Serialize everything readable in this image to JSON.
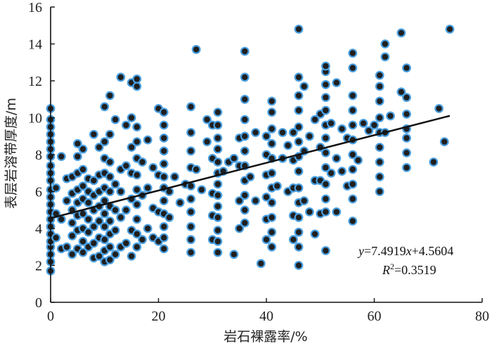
{
  "chart_data": {
    "type": "scatter",
    "xlabel": "岩石裸露率/%",
    "ylabel": "表层岩溶带厚度/m",
    "xlim": [
      0,
      80
    ],
    "ylim": [
      0,
      16
    ],
    "xticks": [
      "0",
      "20",
      "40",
      "60",
      "80"
    ],
    "yticks": [
      "0",
      "2",
      "4",
      "6",
      "8",
      "10",
      "12",
      "14",
      "16"
    ],
    "grid": false,
    "marker_fill": "#1f1f1f",
    "marker_edge": "#4a9fe0",
    "trendline": {
      "slope": 7.4919,
      "intercept": 4.5604,
      "x_range": [
        0,
        74
      ],
      "color": "#111111",
      "equation_text": "y=7.4919x+4.5604",
      "r2_text": "R2=0.3519"
    },
    "points": [
      [
        0,
        1.7
      ],
      [
        0,
        2.2
      ],
      [
        0,
        2.6
      ],
      [
        0,
        3.0
      ],
      [
        0,
        3.3
      ],
      [
        0,
        3.7
      ],
      [
        0,
        4.1
      ],
      [
        0,
        4.5
      ],
      [
        0,
        4.9
      ],
      [
        0,
        5.3
      ],
      [
        0,
        5.7
      ],
      [
        0,
        6.1
      ],
      [
        0,
        6.6
      ],
      [
        0,
        7.0
      ],
      [
        0,
        7.4
      ],
      [
        0,
        7.9
      ],
      [
        0,
        8.3
      ],
      [
        0,
        8.7
      ],
      [
        0,
        9.1
      ],
      [
        0,
        9.5
      ],
      [
        0,
        9.9
      ],
      [
        0,
        10.5
      ],
      [
        1,
        3.5
      ],
      [
        1,
        4.8
      ],
      [
        1,
        6.2
      ],
      [
        2,
        2.9
      ],
      [
        2,
        4.5
      ],
      [
        2,
        7.9
      ],
      [
        3,
        3.0
      ],
      [
        3,
        5.5
      ],
      [
        3,
        6.7
      ],
      [
        4,
        2.6
      ],
      [
        4,
        3.6
      ],
      [
        4,
        4.3
      ],
      [
        4,
        5.0
      ],
      [
        4,
        5.9
      ],
      [
        4,
        6.8
      ],
      [
        5,
        2.9
      ],
      [
        5,
        3.9
      ],
      [
        5,
        4.7
      ],
      [
        5,
        5.4
      ],
      [
        5,
        6.1
      ],
      [
        5,
        7.0
      ],
      [
        5,
        7.9
      ],
      [
        5,
        8.6
      ],
      [
        6,
        2.7
      ],
      [
        6,
        3.3
      ],
      [
        6,
        4.0
      ],
      [
        6,
        4.8
      ],
      [
        6,
        5.6
      ],
      [
        6,
        6.3
      ],
      [
        6,
        7.2
      ],
      [
        6,
        8.3
      ],
      [
        7,
        3.0
      ],
      [
        7,
        3.8
      ],
      [
        7,
        4.5
      ],
      [
        7,
        5.4
      ],
      [
        7,
        6.0
      ],
      [
        7,
        6.7
      ],
      [
        8,
        2.4
      ],
      [
        8,
        3.2
      ],
      [
        8,
        4.1
      ],
      [
        8,
        5.0
      ],
      [
        8,
        5.8
      ],
      [
        8,
        6.6
      ],
      [
        8,
        9.1
      ],
      [
        9,
        2.5
      ],
      [
        9,
        3.5
      ],
      [
        9,
        4.4
      ],
      [
        9,
        5.2
      ],
      [
        9,
        6.0
      ],
      [
        9,
        6.9
      ],
      [
        9,
        8.4
      ],
      [
        10,
        2.2
      ],
      [
        10,
        2.8
      ],
      [
        10,
        3.4
      ],
      [
        10,
        4.1
      ],
      [
        10,
        4.8
      ],
      [
        10,
        5.5
      ],
      [
        10,
        6.2
      ],
      [
        10,
        7.0
      ],
      [
        10,
        7.8
      ],
      [
        10,
        8.7
      ],
      [
        10,
        10.6
      ],
      [
        11,
        2.3
      ],
      [
        11,
        3.0
      ],
      [
        11,
        3.7
      ],
      [
        11,
        4.4
      ],
      [
        11,
        5.2
      ],
      [
        11,
        6.0
      ],
      [
        11,
        6.8
      ],
      [
        11,
        7.6
      ],
      [
        11,
        9.1
      ],
      [
        11,
        11.2
      ],
      [
        12,
        2.6
      ],
      [
        12,
        3.9
      ],
      [
        12,
        5.0
      ],
      [
        12,
        6.4
      ],
      [
        12,
        9.9
      ],
      [
        13,
        3.0
      ],
      [
        13,
        4.6
      ],
      [
        13,
        6.0
      ],
      [
        13,
        7.2
      ],
      [
        13,
        12.2
      ],
      [
        14,
        3.2
      ],
      [
        14,
        5.0
      ],
      [
        14,
        7.4
      ],
      [
        14,
        9.6
      ],
      [
        15,
        2.5
      ],
      [
        15,
        3.9
      ],
      [
        15,
        5.6
      ],
      [
        15,
        7.0
      ],
      [
        15,
        8.4
      ],
      [
        15,
        10.0
      ],
      [
        15,
        11.9
      ],
      [
        16,
        3.0
      ],
      [
        16,
        3.7
      ],
      [
        16,
        4.5
      ],
      [
        16,
        5.3
      ],
      [
        16,
        6.1
      ],
      [
        16,
        6.9
      ],
      [
        16,
        7.8
      ],
      [
        16,
        8.7
      ],
      [
        16,
        9.5
      ],
      [
        16,
        11.7
      ],
      [
        16,
        12.1
      ],
      [
        17,
        3.4
      ],
      [
        17,
        5.8
      ],
      [
        17,
        7.6
      ],
      [
        18,
        4.0
      ],
      [
        18,
        6.2
      ],
      [
        18,
        8.8
      ],
      [
        19,
        3.5
      ],
      [
        19,
        5.1
      ],
      [
        19,
        7.3
      ],
      [
        20,
        3.3
      ],
      [
        20,
        4.9
      ],
      [
        20,
        6.9
      ],
      [
        20,
        10.5
      ],
      [
        21,
        2.9
      ],
      [
        21,
        3.5
      ],
      [
        21,
        4.1
      ],
      [
        21,
        4.8
      ],
      [
        21,
        5.5
      ],
      [
        21,
        6.2
      ],
      [
        21,
        6.8
      ],
      [
        21,
        7.5
      ],
      [
        21,
        8.2
      ],
      [
        21,
        8.9
      ],
      [
        21,
        9.6
      ],
      [
        21,
        10.3
      ],
      [
        22,
        4.6
      ],
      [
        22,
        6.0
      ],
      [
        23,
        6.8
      ],
      [
        24,
        5.4
      ],
      [
        25,
        6.4
      ],
      [
        26,
        2.7
      ],
      [
        26,
        3.4
      ],
      [
        26,
        4.1
      ],
      [
        26,
        4.9
      ],
      [
        26,
        5.6
      ],
      [
        26,
        6.3
      ],
      [
        26,
        7.3
      ],
      [
        26,
        8.2
      ],
      [
        26,
        9.2
      ],
      [
        26,
        10.6
      ],
      [
        27,
        13.7
      ],
      [
        27,
        7.2
      ],
      [
        28,
        6.1
      ],
      [
        29,
        8.7
      ],
      [
        29,
        9.9
      ],
      [
        30,
        3.4
      ],
      [
        30,
        4.7
      ],
      [
        30,
        5.9
      ],
      [
        30,
        7.8
      ],
      [
        30,
        9.6
      ],
      [
        31,
        2.7
      ],
      [
        31,
        3.3
      ],
      [
        31,
        3.9
      ],
      [
        31,
        4.6
      ],
      [
        31,
        5.2
      ],
      [
        31,
        5.8
      ],
      [
        31,
        6.4
      ],
      [
        31,
        7.0
      ],
      [
        31,
        7.6
      ],
      [
        31,
        8.3
      ],
      [
        31,
        8.9
      ],
      [
        31,
        9.6
      ],
      [
        31,
        10.3
      ],
      [
        32,
        7.1
      ],
      [
        33,
        7.6
      ],
      [
        34,
        2.6
      ],
      [
        34,
        7.8
      ],
      [
        35,
        4.0
      ],
      [
        35,
        5.5
      ],
      [
        35,
        7.4
      ],
      [
        35,
        8.9
      ],
      [
        36,
        4.3
      ],
      [
        36,
        5.0
      ],
      [
        36,
        5.8
      ],
      [
        36,
        6.6
      ],
      [
        36,
        7.4
      ],
      [
        36,
        8.2
      ],
      [
        36,
        9.0
      ],
      [
        36,
        9.9
      ],
      [
        36,
        11.0
      ],
      [
        36,
        12.2
      ],
      [
        36,
        13.6
      ],
      [
        37,
        6.8
      ],
      [
        38,
        5.5
      ],
      [
        38,
        9.2
      ],
      [
        39,
        2.1
      ],
      [
        40,
        3.4
      ],
      [
        40,
        4.5
      ],
      [
        40,
        5.7
      ],
      [
        40,
        6.9
      ],
      [
        40,
        8.0
      ],
      [
        40,
        9.0
      ],
      [
        41,
        3.0
      ],
      [
        41,
        3.8
      ],
      [
        41,
        4.6
      ],
      [
        41,
        5.4
      ],
      [
        41,
        6.2
      ],
      [
        41,
        7.0
      ],
      [
        41,
        7.8
      ],
      [
        41,
        8.6
      ],
      [
        41,
        9.4
      ],
      [
        41,
        10.3
      ],
      [
        41,
        10.9
      ],
      [
        42,
        6.3
      ],
      [
        43,
        7.8
      ],
      [
        43,
        9.2
      ],
      [
        44,
        6.0
      ],
      [
        44,
        8.5
      ],
      [
        45,
        3.4
      ],
      [
        45,
        4.7
      ],
      [
        45,
        6.2
      ],
      [
        45,
        7.7
      ],
      [
        45,
        9.2
      ],
      [
        46,
        2.0
      ],
      [
        46,
        3.0
      ],
      [
        46,
        3.8
      ],
      [
        46,
        4.6
      ],
      [
        46,
        5.4
      ],
      [
        46,
        6.2
      ],
      [
        46,
        7.1
      ],
      [
        46,
        7.9
      ],
      [
        46,
        8.7
      ],
      [
        46,
        9.5
      ],
      [
        46,
        10.4
      ],
      [
        46,
        11.2
      ],
      [
        46,
        12.2
      ],
      [
        46,
        14.8
      ],
      [
        47,
        5.5
      ],
      [
        47,
        8.2
      ],
      [
        47,
        11.7
      ],
      [
        48,
        4.9
      ],
      [
        48,
        9.0
      ],
      [
        49,
        3.7
      ],
      [
        49,
        6.6
      ],
      [
        49,
        9.9
      ],
      [
        50,
        4.8
      ],
      [
        50,
        6.6
      ],
      [
        50,
        8.4
      ],
      [
        50,
        10.2
      ],
      [
        51,
        2.8
      ],
      [
        51,
        4.9
      ],
      [
        51,
        5.6
      ],
      [
        51,
        6.4
      ],
      [
        51,
        7.3
      ],
      [
        51,
        8.1
      ],
      [
        51,
        8.9
      ],
      [
        51,
        9.6
      ],
      [
        51,
        10.4
      ],
      [
        51,
        11.1
      ],
      [
        51,
        11.8
      ],
      [
        51,
        12.5
      ],
      [
        51,
        12.8
      ],
      [
        52,
        7.0
      ],
      [
        52,
        9.7
      ],
      [
        53,
        4.9
      ],
      [
        53,
        7.8
      ],
      [
        53,
        11.9
      ],
      [
        54,
        7.1
      ],
      [
        54,
        9.4
      ],
      [
        55,
        6.3
      ],
      [
        55,
        8.9
      ],
      [
        56,
        4.4
      ],
      [
        56,
        5.6
      ],
      [
        56,
        6.4
      ],
      [
        56,
        7.2
      ],
      [
        56,
        8.0
      ],
      [
        56,
        8.8
      ],
      [
        56,
        9.6
      ],
      [
        56,
        10.4
      ],
      [
        56,
        11.2
      ],
      [
        56,
        12.7
      ],
      [
        56,
        13.5
      ],
      [
        57,
        7.7
      ],
      [
        58,
        9.7
      ],
      [
        59,
        9.3
      ],
      [
        60,
        9.6
      ],
      [
        61,
        6.0
      ],
      [
        61,
        6.8
      ],
      [
        61,
        7.6
      ],
      [
        61,
        8.4
      ],
      [
        61,
        9.2
      ],
      [
        61,
        10.0
      ],
      [
        61,
        10.9
      ],
      [
        61,
        11.7
      ],
      [
        61,
        12.3
      ],
      [
        62,
        9.2
      ],
      [
        62,
        13.3
      ],
      [
        62,
        14.0
      ],
      [
        63,
        10.1
      ],
      [
        65,
        14.6
      ],
      [
        65,
        11.4
      ],
      [
        66,
        7.3
      ],
      [
        66,
        8.1
      ],
      [
        66,
        8.9
      ],
      [
        66,
        9.4
      ],
      [
        66,
        10.2
      ],
      [
        66,
        11.1
      ],
      [
        66,
        12.7
      ],
      [
        71,
        7.6
      ],
      [
        72,
        10.5
      ],
      [
        73,
        8.7
      ],
      [
        74,
        14.8
      ]
    ]
  }
}
